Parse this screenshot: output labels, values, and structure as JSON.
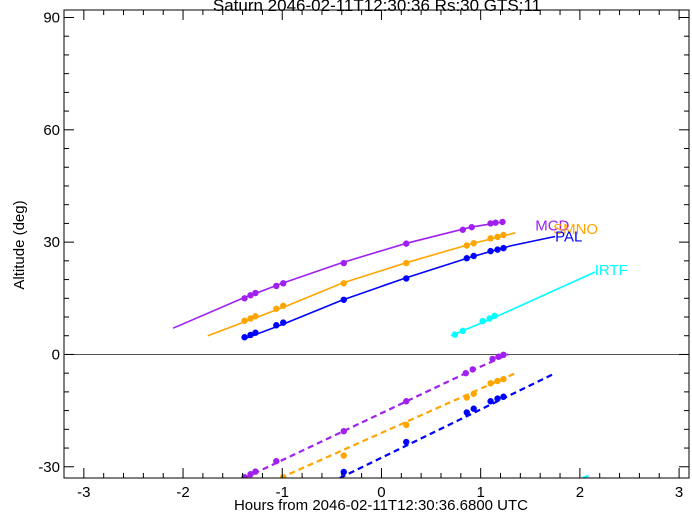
{
  "chart_data": {
    "type": "line",
    "title": "Saturn 2046-02-11T12:30:36 Rs:30 GTS:11",
    "xlabel": "Hours from 2046-02-11T12:30:36.6800 UTC",
    "ylabel": "Altitude (deg)",
    "xlim": [
      -3.2,
      3.1
    ],
    "ylim": [
      -33,
      92
    ],
    "xticks": [
      -3,
      -2,
      -1,
      0,
      1,
      2,
      3
    ],
    "xtick_labels": [
      "-3",
      "-2",
      "-1",
      "0",
      "1",
      "2",
      "3"
    ],
    "yticks": [
      -30,
      0,
      30,
      60,
      90
    ],
    "ytick_labels": [
      "-30",
      "0",
      "30",
      "60",
      "90"
    ],
    "grid": false,
    "horizon_line_y": 0,
    "series": [
      {
        "name": "MCD",
        "color": "#a020f0",
        "line": {
          "x": [
            -2.1,
            -1.4,
            -1.0,
            -0.4,
            0.25,
            0.9,
            1.2
          ],
          "y": [
            7,
            15,
            19,
            24.5,
            29.7,
            34,
            35.3
          ]
        },
        "label_at": {
          "x": 1.55,
          "y": 34.5
        },
        "points": {
          "x": [
            -1.38,
            -1.32,
            -1.27,
            -1.06,
            -0.99,
            -0.38,
            0.25,
            0.82,
            0.91,
            1.1,
            1.15,
            1.22
          ],
          "y": [
            15,
            15.8,
            16.4,
            18.3,
            19,
            24.4,
            29.6,
            33.3,
            34,
            35,
            35.2,
            35.4
          ]
        },
        "below_horizon": {
          "x": [
            -1.38,
            0.85,
            1.28
          ],
          "y": [
            -33,
            -5,
            0
          ]
        },
        "below_points": {
          "x": [
            -1.38,
            -1.32,
            -1.27,
            -1.06,
            -0.38,
            0.25,
            0.85,
            0.92,
            1.12,
            1.18,
            1.23
          ],
          "y": [
            -32.8,
            -32,
            -31.3,
            -28.5,
            -20.5,
            -12.5,
            -5,
            -4,
            -1.2,
            -0.6,
            -0.1
          ]
        }
      },
      {
        "name": "SMNO",
        "color": "#ffa500",
        "line": {
          "x": [
            -1.75,
            -1.35,
            -0.95,
            -0.4,
            0.25,
            0.9,
            1.35
          ],
          "y": [
            5,
            9,
            13,
            19,
            24.5,
            29.5,
            32.5
          ]
        },
        "label_at": {
          "x": 1.73,
          "y": 33.5
        },
        "points": {
          "x": [
            -1.38,
            -1.32,
            -1.27,
            -1.06,
            -0.99,
            -0.38,
            0.25,
            0.86,
            0.93,
            1.1,
            1.17,
            1.23
          ],
          "y": [
            9,
            9.6,
            10.2,
            12.2,
            13,
            19,
            24.4,
            29.1,
            29.7,
            31,
            31.4,
            31.9
          ]
        },
        "below_horizon": {
          "x": [
            -1.02,
            1.35
          ],
          "y": [
            -33,
            -5
          ]
        },
        "below_points": {
          "x": [
            -0.99,
            -0.38,
            0.25,
            0.86,
            0.93,
            1.1,
            1.17,
            1.23
          ],
          "y": [
            -32.8,
            -27,
            -18.8,
            -11.5,
            -10.5,
            -7.7,
            -7.1,
            -6.6
          ]
        }
      },
      {
        "name": "PAL",
        "color": "#0000ff",
        "line": {
          "x": [
            -1.4,
            -1.0,
            -0.4,
            0.25,
            0.9,
            1.3,
            1.75
          ],
          "y": [
            4,
            8,
            14.5,
            20.5,
            26,
            29,
            31.5
          ]
        },
        "label_at": {
          "x": 1.75,
          "y": 31.5
        },
        "points": {
          "x": [
            -1.38,
            -1.32,
            -1.27,
            -1.06,
            -0.99,
            -0.38,
            0.25,
            0.86,
            0.93,
            1.1,
            1.17,
            1.23
          ],
          "y": [
            4.6,
            5.2,
            5.8,
            7.8,
            8.5,
            14.6,
            20.3,
            25.7,
            26.3,
            27.6,
            28,
            28.4
          ]
        },
        "below_horizon": {
          "x": [
            -0.42,
            1.75
          ],
          "y": [
            -33,
            -5
          ]
        },
        "below_points": {
          "x": [
            -0.38,
            0.25,
            0.86,
            0.93,
            1.1,
            1.17,
            1.23
          ],
          "y": [
            -31.4,
            -23.4,
            -15.5,
            -14.5,
            -12.5,
            -11.8,
            -11.3
          ]
        }
      },
      {
        "name": "IRTF",
        "color": "#00ffff",
        "line": {
          "x": [
            0.7,
            1.15,
            2.15
          ],
          "y": [
            5,
            10,
            22
          ]
        },
        "label_at": {
          "x": 2.15,
          "y": 22.5
        },
        "points": {
          "x": [
            0.74,
            0.82,
            1.02,
            1.09,
            1.14
          ],
          "y": [
            5.3,
            6.3,
            8.9,
            9.6,
            10.3
          ]
        },
        "below_horizon": {
          "x": [
            2.03,
            2.12
          ],
          "y": [
            -33,
            -32
          ]
        },
        "below_points": {
          "x": [],
          "y": []
        }
      }
    ]
  }
}
